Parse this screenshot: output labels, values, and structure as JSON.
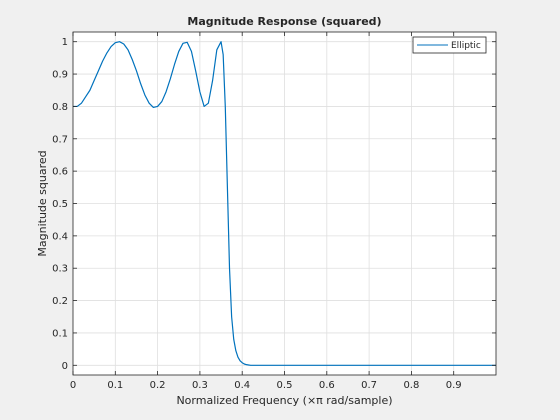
{
  "chart_data": {
    "type": "line",
    "title": "Magnitude Response (squared)",
    "xlabel": "Normalized Frequency (×π rad/sample)",
    "ylabel": "Magnitude squared",
    "xlim": [
      0,
      1
    ],
    "ylim": [
      -0.03,
      1.03
    ],
    "xticks": [
      "0",
      "0.1",
      "0.2",
      "0.3",
      "0.4",
      "0.5",
      "0.6",
      "0.7",
      "0.8",
      "0.9"
    ],
    "yticks": [
      "0",
      "0.1",
      "0.2",
      "0.3",
      "0.4",
      "0.5",
      "0.6",
      "0.7",
      "0.8",
      "0.9",
      "1"
    ],
    "grid": true,
    "legend_position": "top-right",
    "series": [
      {
        "name": "Elliptic",
        "color": "#0072bd",
        "x": [
          0,
          0.01,
          0.02,
          0.03,
          0.04,
          0.05,
          0.06,
          0.07,
          0.08,
          0.09,
          0.1,
          0.11,
          0.12,
          0.13,
          0.14,
          0.15,
          0.16,
          0.17,
          0.18,
          0.19,
          0.2,
          0.21,
          0.22,
          0.23,
          0.24,
          0.25,
          0.26,
          0.27,
          0.28,
          0.29,
          0.3,
          0.31,
          0.32,
          0.33,
          0.34,
          0.35,
          0.355,
          0.36,
          0.365,
          0.37,
          0.375,
          0.38,
          0.385,
          0.39,
          0.395,
          0.4,
          0.405,
          0.41,
          0.415,
          0.42,
          0.425,
          0.43,
          0.435,
          0.44,
          0.45,
          0.46,
          0.47,
          0.48,
          0.5,
          0.55,
          0.6,
          0.7,
          0.8,
          0.9,
          1.0
        ],
        "y": [
          0.8,
          0.8,
          0.81,
          0.83,
          0.85,
          0.88,
          0.91,
          0.94,
          0.965,
          0.985,
          0.997,
          1.0,
          0.993,
          0.975,
          0.945,
          0.91,
          0.87,
          0.835,
          0.81,
          0.797,
          0.8,
          0.815,
          0.845,
          0.885,
          0.93,
          0.97,
          0.995,
          0.998,
          0.97,
          0.91,
          0.845,
          0.8,
          0.81,
          0.88,
          0.975,
          1.0,
          0.96,
          0.8,
          0.55,
          0.3,
          0.15,
          0.08,
          0.045,
          0.025,
          0.014,
          0.008,
          0.004,
          0.002,
          0.001,
          0.0,
          0.0,
          0.0,
          0.0,
          0.0,
          0.0,
          0.0,
          0.0,
          0.0,
          0.0,
          0.0,
          0.0,
          0.0,
          0.0,
          0.0,
          0.0
        ]
      }
    ]
  }
}
